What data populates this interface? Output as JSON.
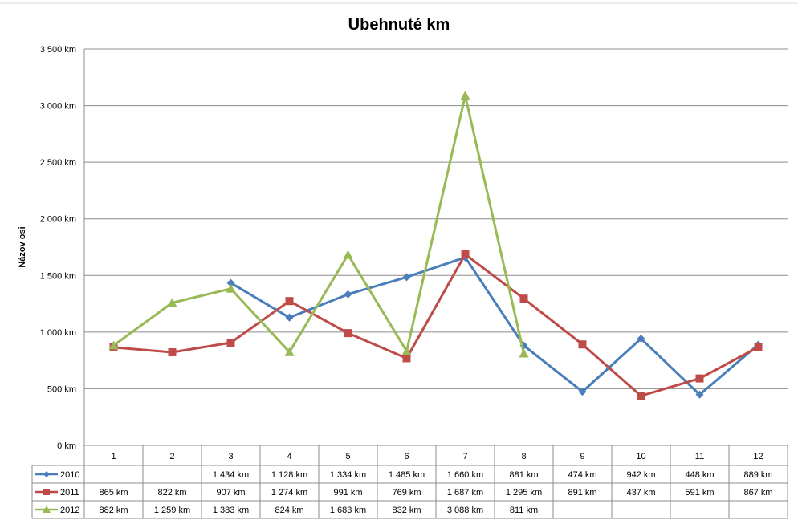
{
  "chart_data": {
    "type": "line",
    "title": "Ubehnuté km",
    "ylabel": "Názov osi",
    "xlabel": "",
    "ylim": [
      0,
      3500
    ],
    "y_ticks": [
      {
        "value": 0,
        "label": "0 km"
      },
      {
        "value": 500,
        "label": "500 km"
      },
      {
        "value": 1000,
        "label": "1 000 km"
      },
      {
        "value": 1500,
        "label": "1 500 km"
      },
      {
        "value": 2000,
        "label": "2 000 km"
      },
      {
        "value": 2500,
        "label": "2 500 km"
      },
      {
        "value": 3000,
        "label": "3 000 km"
      },
      {
        "value": 3500,
        "label": "3 500 km"
      }
    ],
    "grid": true,
    "legend": "data-table",
    "categories": [
      "1",
      "2",
      "3",
      "4",
      "5",
      "6",
      "7",
      "8",
      "9",
      "10",
      "11",
      "12"
    ],
    "series": [
      {
        "name": "2010",
        "color": "#4A7EBB",
        "marker": "diamond",
        "values": [
          null,
          null,
          1434,
          1128,
          1334,
          1485,
          1660,
          881,
          474,
          942,
          448,
          889
        ],
        "labels": [
          "",
          "",
          "1 434 km",
          "1 128 km",
          "1 334 km",
          "1 485 km",
          "1 660 km",
          "881 km",
          "474 km",
          "942 km",
          "448 km",
          "889 km"
        ]
      },
      {
        "name": "2011",
        "color": "#BE4B48",
        "marker": "square",
        "values": [
          865,
          822,
          907,
          1274,
          991,
          769,
          1687,
          1295,
          891,
          437,
          591,
          867
        ],
        "labels": [
          "865 km",
          "822 km",
          "907 km",
          "1 274 km",
          "991 km",
          "769 km",
          "1 687 km",
          "1 295 km",
          "891 km",
          "437 km",
          "591 km",
          "867 km"
        ]
      },
      {
        "name": "2012",
        "color": "#98B954",
        "marker": "triangle",
        "values": [
          882,
          1259,
          1383,
          824,
          1683,
          832,
          3088,
          811,
          null,
          null,
          null,
          null
        ],
        "labels": [
          "882 km",
          "1 259 km",
          "1 383 km",
          "824 km",
          "1 683 km",
          "832 km",
          "3 088 km",
          "811 km",
          "",
          "",
          "",
          ""
        ]
      }
    ]
  }
}
